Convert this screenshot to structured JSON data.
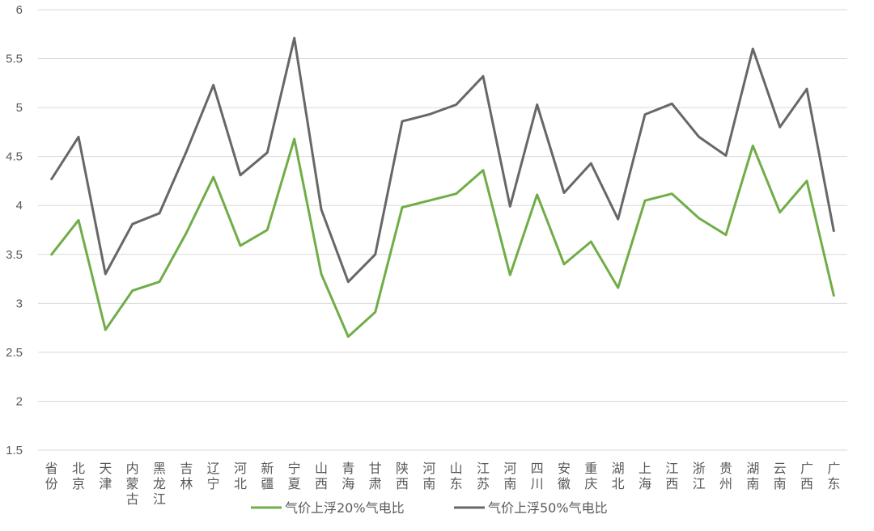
{
  "chart_data": {
    "type": "line",
    "title": "",
    "xlabel": "",
    "ylabel": "",
    "ylim": [
      1.5,
      6
    ],
    "yticks": [
      "1.5",
      "2",
      "2.5",
      "3",
      "3.5",
      "4",
      "4.5",
      "5",
      "5.5",
      "6"
    ],
    "grid": true,
    "legend_position": "bottom",
    "categories": [
      "省份",
      "北京",
      "天津",
      "内蒙古",
      "黑龙江",
      "吉林",
      "辽宁",
      "河北",
      "新疆",
      "宁夏",
      "山西",
      "青海",
      "甘肃",
      "陕西",
      "河南",
      "山东",
      "江苏",
      "河南",
      "四川",
      "安徽",
      "重庆",
      "湖北",
      "上海",
      "江西",
      "浙江",
      "贵州",
      "湖南",
      "云南",
      "广西",
      "广东"
    ],
    "series": [
      {
        "name": "气价上浮20%气电比",
        "color": "#70ad47",
        "values": [
          3.5,
          3.85,
          2.73,
          3.13,
          3.22,
          3.72,
          4.29,
          3.59,
          3.75,
          4.68,
          3.3,
          2.66,
          2.91,
          3.98,
          4.05,
          4.12,
          4.36,
          3.29,
          4.11,
          3.4,
          3.63,
          3.16,
          4.05,
          4.12,
          3.87,
          3.7,
          4.61,
          3.93,
          4.25,
          3.08
        ]
      },
      {
        "name": "气价上浮50%气电比",
        "color": "#676767",
        "values": [
          4.27,
          4.7,
          3.3,
          3.81,
          3.92,
          4.55,
          5.23,
          4.31,
          4.54,
          5.71,
          3.96,
          3.22,
          3.5,
          4.86,
          4.93,
          5.03,
          5.32,
          3.99,
          5.03,
          4.13,
          4.43,
          3.86,
          4.93,
          5.04,
          4.7,
          4.51,
          5.6,
          4.8,
          5.19,
          3.74
        ]
      }
    ]
  }
}
